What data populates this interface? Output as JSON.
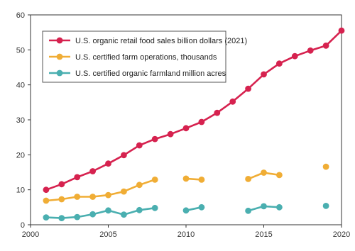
{
  "chart_data": {
    "type": "line",
    "title": "",
    "xlabel": "",
    "ylabel": "",
    "xlim": [
      2000,
      2020
    ],
    "ylim": [
      0,
      60
    ],
    "x_ticks": [
      "2000",
      "2005",
      "2010",
      "2015",
      "2020"
    ],
    "y_ticks": [
      "0",
      "10",
      "20",
      "30",
      "40",
      "50",
      "60"
    ],
    "grid": false,
    "legend_position": "top-left",
    "series": [
      {
        "name": "U.S. organic retail food sales billion dollars (2021)",
        "color": "#d6224f",
        "points": [
          [
            2001,
            10.0
          ],
          [
            2002,
            11.6
          ],
          [
            2003,
            13.6
          ],
          [
            2004,
            15.3
          ],
          [
            2005,
            17.5
          ],
          [
            2006,
            19.9
          ],
          [
            2007,
            22.7
          ],
          [
            2008,
            24.5
          ],
          [
            2009,
            25.9
          ],
          [
            2010,
            27.6
          ],
          [
            2011,
            29.4
          ],
          [
            2012,
            32.0
          ],
          [
            2013,
            35.2
          ],
          [
            2014,
            38.9
          ],
          [
            2015,
            43.0
          ],
          [
            2016,
            46.1
          ],
          [
            2017,
            48.2
          ],
          [
            2018,
            49.8
          ],
          [
            2019,
            51.2
          ],
          [
            2020,
            55.5
          ]
        ]
      },
      {
        "name": "U.S. certified farm operations, thousands",
        "color": "#f0ad35",
        "points": [
          [
            2001,
            6.9
          ],
          [
            2002,
            7.3
          ],
          [
            2003,
            8.0
          ],
          [
            2004,
            8.0
          ],
          [
            2005,
            8.5
          ],
          [
            2006,
            9.5
          ],
          [
            2007,
            11.4
          ],
          [
            2008,
            12.9
          ],
          null,
          [
            2010,
            13.2
          ],
          [
            2011,
            12.9
          ],
          null,
          [
            2014,
            13.1
          ],
          [
            2015,
            14.9
          ],
          [
            2016,
            14.2
          ],
          null,
          [
            2019,
            16.6
          ]
        ]
      },
      {
        "name": "U.S. certified organic farmland million acres",
        "color": "#4aafb0",
        "points": [
          [
            2001,
            2.1
          ],
          [
            2002,
            1.9
          ],
          [
            2003,
            2.2
          ],
          [
            2004,
            3.0
          ],
          [
            2005,
            4.1
          ],
          [
            2006,
            2.9
          ],
          [
            2007,
            4.2
          ],
          [
            2008,
            4.8
          ],
          null,
          [
            2010,
            4.1
          ],
          [
            2011,
            5.0
          ],
          null,
          [
            2014,
            4.0
          ],
          [
            2015,
            5.3
          ],
          [
            2016,
            5.0
          ],
          null,
          [
            2019,
            5.4
          ]
        ]
      }
    ]
  }
}
